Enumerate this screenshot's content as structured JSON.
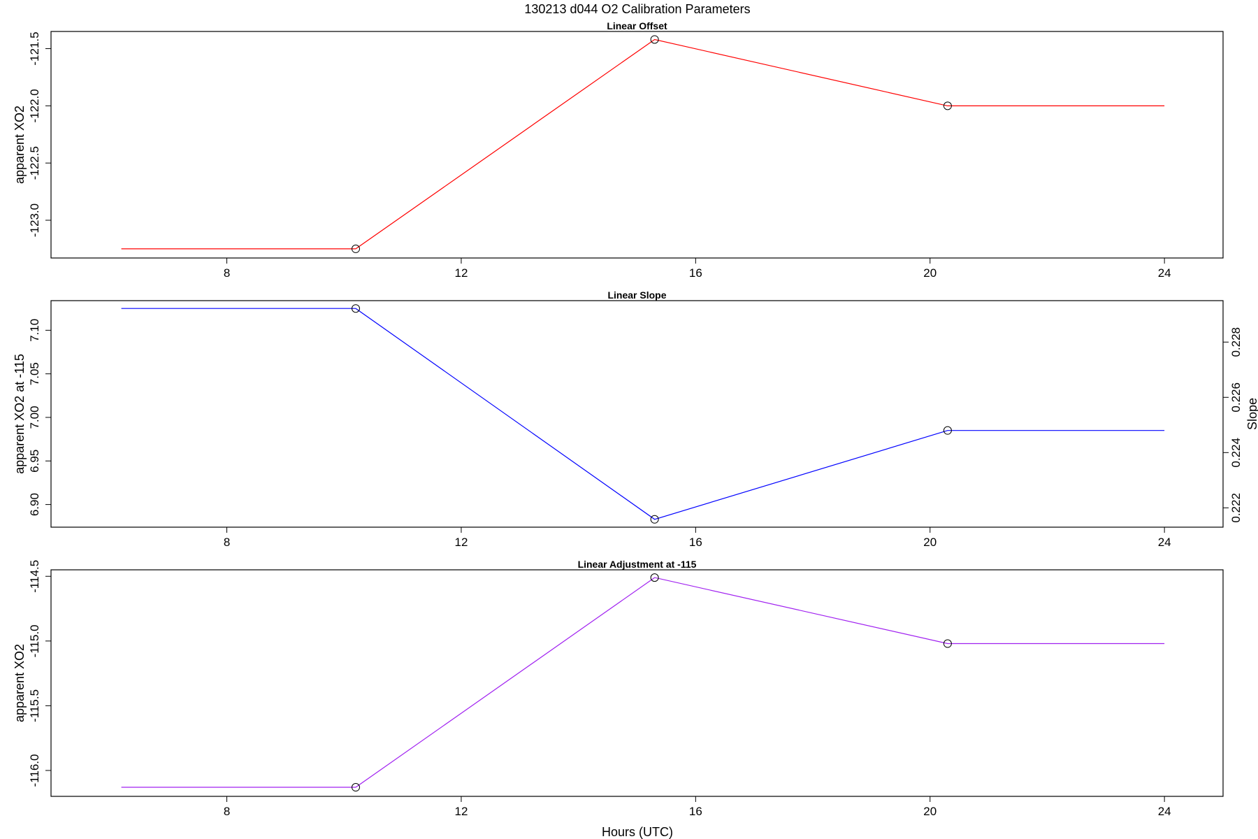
{
  "figure": {
    "title": "130213   d044   O2 Calibration Parameters",
    "xlabel": "Hours (UTC)"
  },
  "chart_data": [
    {
      "type": "line",
      "title": "Linear Offset",
      "ylabel": "apparent XO2",
      "y2label": "",
      "color": "#ff0000",
      "x": [
        6.2,
        10.2,
        15.3,
        20.3,
        24.0
      ],
      "y": [
        -123.25,
        -123.25,
        -121.42,
        -122.0,
        -122.0
      ],
      "markers": [
        false,
        true,
        true,
        true,
        false
      ],
      "xlim": [
        5.0,
        25.0
      ],
      "ylim": [
        -123.33,
        -121.35
      ],
      "xticks": [
        8,
        12,
        16,
        20,
        24
      ],
      "xtick_labels": [
        "8",
        "12",
        "16",
        "20",
        "24"
      ],
      "yticks": [
        -123.0,
        -122.5,
        -122.0,
        -121.5
      ],
      "ytick_labels": [
        "-123.0",
        "-122.5",
        "-122.0",
        "-121.5"
      ],
      "y2ticks": [],
      "y2tick_labels": [],
      "grid": false
    },
    {
      "type": "line",
      "title": "Linear Slope",
      "ylabel": "apparent XO2 at -115",
      "y2label": "Slope",
      "color": "#0000ff",
      "x": [
        6.2,
        10.2,
        15.3,
        20.3,
        24.0
      ],
      "y": [
        7.125,
        7.125,
        6.883,
        6.985,
        6.985
      ],
      "markers": [
        false,
        true,
        true,
        true,
        false
      ],
      "xlim": [
        5.0,
        25.0
      ],
      "ylim": [
        6.874,
        7.134
      ],
      "xticks": [
        8,
        12,
        16,
        20,
        24
      ],
      "xtick_labels": [
        "8",
        "12",
        "16",
        "20",
        "24"
      ],
      "yticks": [
        6.9,
        6.95,
        7.0,
        7.05,
        7.1
      ],
      "ytick_labels": [
        "6.90",
        "6.95",
        "7.00",
        "7.05",
        "7.10"
      ],
      "y2lim": [
        0.2213,
        0.2295
      ],
      "y2ticks": [
        0.222,
        0.224,
        0.226,
        0.228
      ],
      "y2tick_labels": [
        "0.222",
        "0.224",
        "0.226",
        "0.228"
      ],
      "grid": false
    },
    {
      "type": "line",
      "title": "Linear Adjustment at -115",
      "ylabel": "apparent XO2",
      "y2label": "",
      "color": "#a020f0",
      "x": [
        6.2,
        10.2,
        15.3,
        20.3,
        24.0
      ],
      "y": [
        -116.13,
        -116.13,
        -114.51,
        -115.02,
        -115.02
      ],
      "markers": [
        false,
        true,
        true,
        true,
        false
      ],
      "xlim": [
        5.0,
        25.0
      ],
      "ylim": [
        -116.2,
        -114.45
      ],
      "xticks": [
        8,
        12,
        16,
        20,
        24
      ],
      "xtick_labels": [
        "8",
        "12",
        "16",
        "20",
        "24"
      ],
      "yticks": [
        -116.0,
        -115.5,
        -115.0,
        -114.5
      ],
      "ytick_labels": [
        "-116.0",
        "-115.5",
        "-115.0",
        "-114.5"
      ],
      "y2ticks": [],
      "y2tick_labels": [],
      "grid": false
    }
  ]
}
